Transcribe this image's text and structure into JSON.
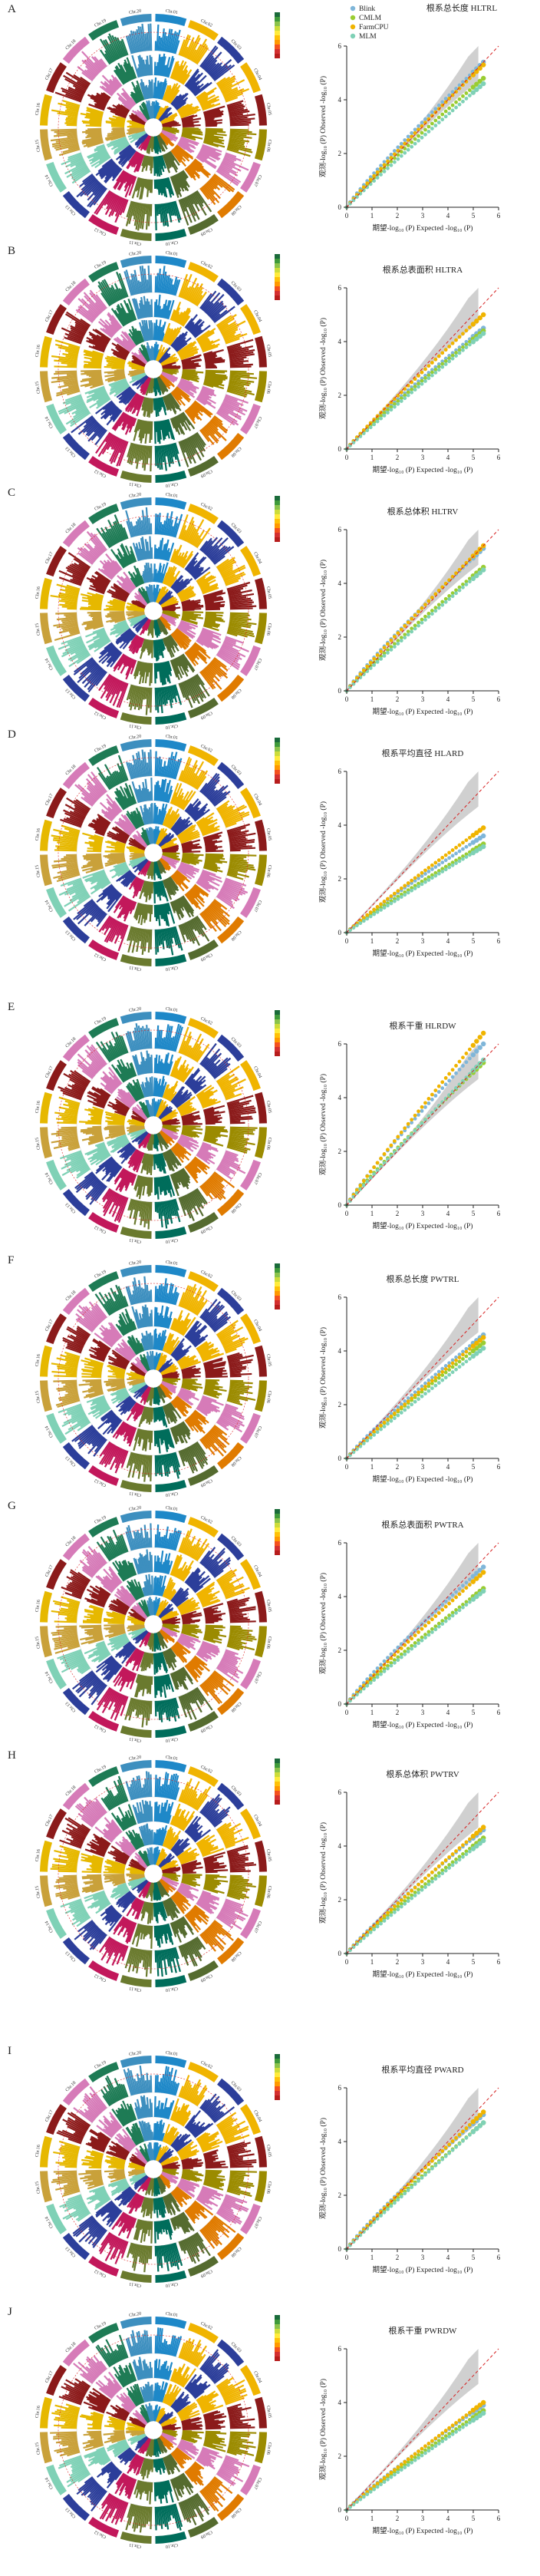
{
  "legend": {
    "series": [
      {
        "name": "Blink",
        "color": "#7fb6d9"
      },
      {
        "name": "CMLM",
        "color": "#9acd32"
      },
      {
        "name": "FarmCPU",
        "color": "#f0b400"
      },
      {
        "name": "MLM",
        "color": "#7fd1b6"
      }
    ]
  },
  "chromosomes": [
    "Chr.01",
    "Chr.02",
    "Chr.03",
    "Chr.04",
    "Chr.05",
    "Chr.06",
    "Chr.07",
    "Chr.08",
    "Chr.09",
    "Chr.10",
    "Chr.11",
    "Chr.12",
    "Chr.13",
    "Chr.14",
    "Chr.15",
    "Chr.16",
    "Chr.17",
    "Chr.18",
    "Chr.19",
    "Chr.20"
  ],
  "chrom_colors": [
    "#1e88c8",
    "#f0b400",
    "#2c3e9a",
    "#f0b400",
    "#8b1a1a",
    "#9b8b00",
    "#d67bb8",
    "#e07b00",
    "#556b2f",
    "#006d5b",
    "#6a7a2e",
    "#c2185b",
    "#2c3e9a",
    "#7fd1b6",
    "#c9a13a",
    "#e6b800",
    "#8b1a1a",
    "#d67bb8",
    "#1e7b55",
    "#3d8fbf"
  ],
  "xlabel": "期望-log₁₀ (P) Expected -log₁₀ (P)",
  "ylabel": "观测-log₁₀ (P) Observed -log₁₀ (P)",
  "panels": [
    {
      "letter": "A",
      "title": "根系总长度 HLTRL"
    },
    {
      "letter": "B",
      "title": "根系总表面积 HLTRA"
    },
    {
      "letter": "C",
      "title": "根系总体积 HLTRV"
    },
    {
      "letter": "D",
      "title": "根系平均直径 HLARD"
    },
    {
      "letter": "E",
      "title": "根系干重 HLRDW"
    },
    {
      "letter": "F",
      "title": "根系总长度 PWTRL"
    },
    {
      "letter": "G",
      "title": "根系总表面积 PWTRA"
    },
    {
      "letter": "H",
      "title": "根系总体积 PWTRV"
    },
    {
      "letter": "I",
      "title": "根系平均直径 PWARD"
    },
    {
      "letter": "J",
      "title": "根系干重 PWRDW"
    }
  ],
  "chart_data": [
    {
      "type": "scatter",
      "title": "根系总长度 HLTRL",
      "xlabel": "期望-log₁₀ (P) Expected -log₁₀ (P)",
      "ylabel": "观测-log₁₀ (P) Observed -log₁₀ (P)",
      "xlim": [
        0,
        6
      ],
      "ylim": [
        0,
        6
      ],
      "x_ticks": [
        0,
        1,
        2,
        3,
        4,
        5,
        6
      ],
      "y_ticks": [
        0,
        2,
        4,
        6
      ],
      "series": [
        {
          "name": "Blink",
          "x": [
            0,
            5.4
          ],
          "y": [
            0,
            5.4
          ]
        },
        {
          "name": "CMLM",
          "x": [
            0,
            5.4
          ],
          "y": [
            0,
            4.8
          ]
        },
        {
          "name": "FarmCPU",
          "x": [
            0,
            5.4
          ],
          "y": [
            0,
            5.3
          ]
        },
        {
          "name": "MLM",
          "x": [
            0,
            5.4
          ],
          "y": [
            0,
            4.6
          ]
        }
      ]
    },
    {
      "type": "scatter",
      "title": "根系总表面积 HLTRA",
      "xlabel": "期望-log₁₀ (P) Expected -log₁₀ (P)",
      "ylabel": "观测-log₁₀ (P) Observed -log₁₀ (P)",
      "xlim": [
        0,
        6
      ],
      "ylim": [
        0,
        6
      ],
      "x_ticks": [
        0,
        1,
        2,
        3,
        4,
        5,
        6
      ],
      "y_ticks": [
        0,
        2,
        4,
        6
      ],
      "series": [
        {
          "name": "Blink",
          "x": [
            0,
            5.4
          ],
          "y": [
            0,
            4.5
          ]
        },
        {
          "name": "CMLM",
          "x": [
            0,
            5.4
          ],
          "y": [
            0,
            4.4
          ]
        },
        {
          "name": "FarmCPU",
          "x": [
            0,
            5.4
          ],
          "y": [
            0,
            5.0
          ]
        },
        {
          "name": "MLM",
          "x": [
            0,
            5.4
          ],
          "y": [
            0,
            4.3
          ]
        }
      ]
    },
    {
      "type": "scatter",
      "title": "根系总体积 HLTRV",
      "xlabel": "期望-log₁₀ (P) Expected -log₁₀ (P)",
      "ylabel": "观测-log₁₀ (P) Observed -log₁₀ (P)",
      "xlim": [
        0,
        6
      ],
      "ylim": [
        0,
        6
      ],
      "x_ticks": [
        0,
        1,
        2,
        3,
        4,
        5,
        6
      ],
      "y_ticks": [
        0,
        2,
        4,
        6
      ],
      "series": [
        {
          "name": "Blink",
          "x": [
            0,
            5.4
          ],
          "y": [
            0,
            5.3
          ]
        },
        {
          "name": "CMLM",
          "x": [
            0,
            5.4
          ],
          "y": [
            0,
            4.6
          ]
        },
        {
          "name": "FarmCPU",
          "x": [
            0,
            5.4
          ],
          "y": [
            0,
            5.4
          ]
        },
        {
          "name": "MLM",
          "x": [
            0,
            5.4
          ],
          "y": [
            0,
            4.5
          ]
        }
      ]
    },
    {
      "type": "scatter",
      "title": "根系平均直径 HLARD",
      "xlabel": "期望-log₁₀ (P) Expected -log₁₀ (P)",
      "ylabel": "观测-log₁₀ (P) Observed -log₁₀ (P)",
      "xlim": [
        0,
        6
      ],
      "ylim": [
        0,
        6
      ],
      "x_ticks": [
        0,
        1,
        2,
        3,
        4,
        5,
        6
      ],
      "y_ticks": [
        0,
        2,
        4,
        6
      ],
      "series": [
        {
          "name": "Blink",
          "x": [
            0,
            5.4
          ],
          "y": [
            0,
            3.6
          ]
        },
        {
          "name": "CMLM",
          "x": [
            0,
            5.4
          ],
          "y": [
            0,
            3.3
          ]
        },
        {
          "name": "FarmCPU",
          "x": [
            0,
            5.4
          ],
          "y": [
            0,
            3.9
          ]
        },
        {
          "name": "MLM",
          "x": [
            0,
            5.4
          ],
          "y": [
            0,
            3.2
          ]
        }
      ]
    },
    {
      "type": "scatter",
      "title": "根系干重 HLRDW",
      "xlabel": "期望-log₁₀ (P) Expected -log₁₀ (P)",
      "ylabel": "观测-log₁₀ (P) Observed -log₁₀ (P)",
      "xlim": [
        0,
        6
      ],
      "ylim": [
        0,
        6
      ],
      "x_ticks": [
        0,
        1,
        2,
        3,
        4,
        5,
        6
      ],
      "y_ticks": [
        0,
        2,
        4,
        6
      ],
      "series": [
        {
          "name": "Blink",
          "x": [
            0,
            5.4
          ],
          "y": [
            0,
            6.0
          ]
        },
        {
          "name": "CMLM",
          "x": [
            0,
            5.4
          ],
          "y": [
            0,
            5.3
          ]
        },
        {
          "name": "FarmCPU",
          "x": [
            0,
            5.4
          ],
          "y": [
            0,
            6.4
          ]
        },
        {
          "name": "MLM",
          "x": [
            0,
            5.4
          ],
          "y": [
            0,
            5.4
          ]
        }
      ]
    },
    {
      "type": "scatter",
      "title": "根系总长度 PWTRL",
      "xlabel": "期望-log₁₀ (P) Expected -log₁₀ (P)",
      "ylabel": "观测-log₁₀ (P) Observed -log₁₀ (P)",
      "xlim": [
        0,
        6
      ],
      "ylim": [
        0,
        6
      ],
      "x_ticks": [
        0,
        1,
        2,
        3,
        4,
        5,
        6
      ],
      "y_ticks": [
        0,
        2,
        4,
        6
      ],
      "series": [
        {
          "name": "Blink",
          "x": [
            0,
            5.4
          ],
          "y": [
            0,
            4.6
          ]
        },
        {
          "name": "CMLM",
          "x": [
            0,
            5.4
          ],
          "y": [
            0,
            4.3
          ]
        },
        {
          "name": "FarmCPU",
          "x": [
            0,
            5.4
          ],
          "y": [
            0,
            4.5
          ]
        },
        {
          "name": "MLM",
          "x": [
            0,
            5.4
          ],
          "y": [
            0,
            4.1
          ]
        }
      ]
    },
    {
      "type": "scatter",
      "title": "根系总表面积 PWTRA",
      "xlabel": "期望-log₁₀ (P) Expected -log₁₀ (P)",
      "ylabel": "观测-log₁₀ (P) Observed -log₁₀ (P)",
      "xlim": [
        0,
        6
      ],
      "ylim": [
        0,
        6
      ],
      "x_ticks": [
        0,
        1,
        2,
        3,
        4,
        5,
        6
      ],
      "y_ticks": [
        0,
        2,
        4,
        6
      ],
      "series": [
        {
          "name": "Blink",
          "x": [
            0,
            5.4
          ],
          "y": [
            0,
            5.1
          ]
        },
        {
          "name": "CMLM",
          "x": [
            0,
            5.4
          ],
          "y": [
            0,
            4.3
          ]
        },
        {
          "name": "FarmCPU",
          "x": [
            0,
            5.4
          ],
          "y": [
            0,
            4.9
          ]
        },
        {
          "name": "MLM",
          "x": [
            0,
            5.4
          ],
          "y": [
            0,
            4.2
          ]
        }
      ]
    },
    {
      "type": "scatter",
      "title": "根系总体积 PWTRV",
      "xlabel": "期望-log₁₀ (P) Expected -log₁₀ (P)",
      "ylabel": "观测-log₁₀ (P) Observed -log₁₀ (P)",
      "xlim": [
        0,
        6
      ],
      "ylim": [
        0,
        6
      ],
      "x_ticks": [
        0,
        1,
        2,
        3,
        4,
        5,
        6
      ],
      "y_ticks": [
        0,
        2,
        4,
        6
      ],
      "series": [
        {
          "name": "Blink",
          "x": [
            0,
            5.4
          ],
          "y": [
            0,
            4.6
          ]
        },
        {
          "name": "CMLM",
          "x": [
            0,
            5.4
          ],
          "y": [
            0,
            4.3
          ]
        },
        {
          "name": "FarmCPU",
          "x": [
            0,
            5.4
          ],
          "y": [
            0,
            4.7
          ]
        },
        {
          "name": "MLM",
          "x": [
            0,
            5.4
          ],
          "y": [
            0,
            4.2
          ]
        }
      ]
    },
    {
      "type": "scatter",
      "title": "根系平均直径 PWARD",
      "xlabel": "期望-log₁₀ (P) Expected -log₁₀ (P)",
      "ylabel": "观测-log₁₀ (P) Observed -log₁₀ (P)",
      "xlim": [
        0,
        6
      ],
      "ylim": [
        0,
        6
      ],
      "x_ticks": [
        0,
        1,
        2,
        3,
        4,
        5,
        6
      ],
      "y_ticks": [
        0,
        2,
        4,
        6
      ],
      "series": [
        {
          "name": "Blink",
          "x": [
            0,
            5.4
          ],
          "y": [
            0,
            5.0
          ]
        },
        {
          "name": "CMLM",
          "x": [
            0,
            5.4
          ],
          "y": [
            0,
            4.7
          ]
        },
        {
          "name": "FarmCPU",
          "x": [
            0,
            5.4
          ],
          "y": [
            0,
            5.1
          ]
        },
        {
          "name": "MLM",
          "x": [
            0,
            5.4
          ],
          "y": [
            0,
            4.7
          ]
        }
      ]
    },
    {
      "type": "scatter",
      "title": "根系干重 PWRDW",
      "xlabel": "期望-log₁₀ (P) Expected -log₁₀ (P)",
      "ylabel": "观测-log₁₀ (P) Observed -log₁₀ (P)",
      "xlim": [
        0,
        6
      ],
      "ylim": [
        0,
        6
      ],
      "x_ticks": [
        0,
        1,
        2,
        3,
        4,
        5,
        6
      ],
      "y_ticks": [
        0,
        2,
        4,
        6
      ],
      "series": [
        {
          "name": "Blink",
          "x": [
            0,
            5.4
          ],
          "y": [
            0,
            3.9
          ]
        },
        {
          "name": "CMLM",
          "x": [
            0,
            5.4
          ],
          "y": [
            0,
            3.7
          ]
        },
        {
          "name": "FarmCPU",
          "x": [
            0,
            5.4
          ],
          "y": [
            0,
            4.0
          ]
        },
        {
          "name": "MLM",
          "x": [
            0,
            5.4
          ],
          "y": [
            0,
            3.6
          ]
        }
      ]
    }
  ]
}
